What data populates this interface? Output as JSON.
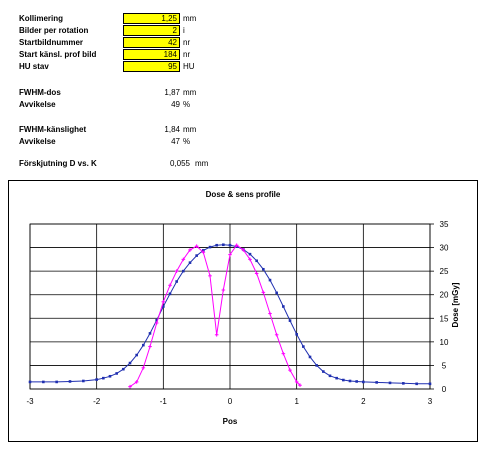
{
  "params": [
    {
      "label": "Kollimering",
      "value": "1,25",
      "unit": "mm"
    },
    {
      "label": "Bilder per rotation",
      "value": "2",
      "unit": "i"
    },
    {
      "label": "Startbildnummer",
      "value": "42",
      "unit": "nr"
    },
    {
      "label": "Start känsl. prof bild",
      "value": "184",
      "unit": "nr"
    },
    {
      "label": "HU stav",
      "value": "95",
      "unit": "HU"
    }
  ],
  "results": [
    {
      "label": "FWHM-dos",
      "value": "1,87",
      "unit": "mm"
    },
    {
      "label": "Avvikelse",
      "value": "49",
      "unit": "%"
    },
    {
      "label": "FWHM-känslighet",
      "value": "1,84",
      "unit": "mm"
    },
    {
      "label": "Avvikelse",
      "value": "47",
      "unit": "%"
    },
    {
      "label": "Förskjutning D vs. K",
      "value": "0,055",
      "unit": "mm"
    }
  ],
  "colors": {
    "input_fill": "#ffff00",
    "dose_series": "#1f2fb0",
    "sens_series": "#ff00ff"
  },
  "chart_data": {
    "type": "line",
    "title": "Dose & sens profile",
    "xlabel": "Pos",
    "ylabel": "Dose [mGy]",
    "xlim": [
      -3,
      3
    ],
    "ylim": [
      0,
      35
    ],
    "xticks": [
      "-3",
      "-2",
      "-1",
      "0",
      "1",
      "2",
      "3"
    ],
    "yticks": [
      "0",
      "5",
      "10",
      "15",
      "20",
      "25",
      "30",
      "35"
    ],
    "grid": true,
    "legend": "none",
    "series": [
      {
        "key": "dose",
        "marker": "square",
        "x": [
          -3.0,
          -2.8,
          -2.6,
          -2.4,
          -2.2,
          -2.0,
          -1.9,
          -1.8,
          -1.7,
          -1.6,
          -1.5,
          -1.4,
          -1.3,
          -1.2,
          -1.1,
          -1.0,
          -0.9,
          -0.8,
          -0.7,
          -0.6,
          -0.5,
          -0.4,
          -0.3,
          -0.2,
          -0.1,
          0.0,
          0.1,
          0.2,
          0.3,
          0.4,
          0.5,
          0.6,
          0.7,
          0.8,
          0.9,
          1.0,
          1.1,
          1.2,
          1.3,
          1.4,
          1.5,
          1.6,
          1.7,
          1.8,
          1.9,
          2.0,
          2.2,
          2.4,
          2.6,
          2.8,
          3.0
        ],
        "y": [
          1.5,
          1.5,
          1.5,
          1.6,
          1.7,
          2.0,
          2.3,
          2.7,
          3.3,
          4.2,
          5.5,
          7.2,
          9.3,
          11.8,
          14.6,
          17.5,
          20.2,
          22.8,
          25.0,
          26.8,
          28.3,
          29.4,
          30.1,
          30.5,
          30.6,
          30.5,
          30.2,
          29.6,
          28.6,
          27.2,
          25.4,
          23.1,
          20.4,
          17.5,
          14.5,
          11.6,
          9.0,
          6.8,
          5.0,
          3.7,
          2.8,
          2.3,
          1.9,
          1.7,
          1.6,
          1.5,
          1.4,
          1.3,
          1.2,
          1.1,
          1.1
        ]
      },
      {
        "key": "sens",
        "marker": "plus",
        "x": [
          -1.5,
          -1.4,
          -1.3,
          -1.2,
          -1.1,
          -1.0,
          -0.9,
          -0.8,
          -0.7,
          -0.6,
          -0.5,
          -0.4,
          -0.3,
          -0.2,
          -0.1,
          0.0,
          0.1,
          0.2,
          0.3,
          0.4,
          0.5,
          0.6,
          0.7,
          0.8,
          0.9,
          1.0,
          1.05
        ],
        "y": [
          0.5,
          1.5,
          4.5,
          9.0,
          14.0,
          18.5,
          22.0,
          25.0,
          27.5,
          29.5,
          30.3,
          29.0,
          24.0,
          11.5,
          21.0,
          28.5,
          30.5,
          29.5,
          27.5,
          24.5,
          20.5,
          16.0,
          11.5,
          7.5,
          4.0,
          1.5,
          0.8
        ]
      }
    ]
  }
}
